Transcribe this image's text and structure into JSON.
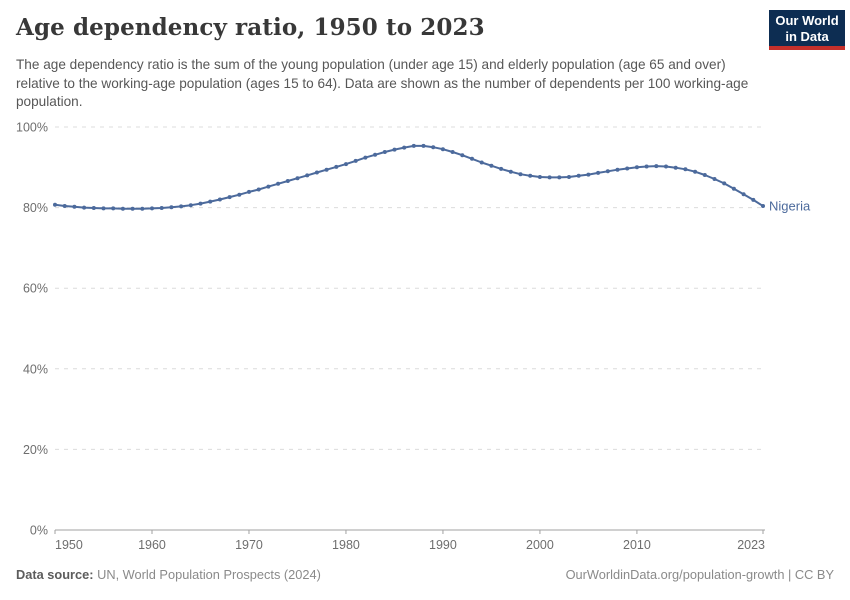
{
  "header": {
    "title": "Age dependency ratio, 1950 to 2023",
    "subtitle": "The age dependency ratio is the sum of the young population (under age 15) and elderly population (age 65 and over) relative to the working-age population (ages 15 to 64). Data are shown as the number of dependents per 100 working-age population."
  },
  "logo": {
    "line1": "Our World",
    "line2": "in Data",
    "bg_color": "#0d2d52",
    "accent_color": "#c5302b"
  },
  "chart_data": {
    "type": "line",
    "title": "Age dependency ratio, 1950 to 2023",
    "xlabel": "",
    "ylabel": "",
    "xlim": [
      1950,
      2023
    ],
    "ylim": [
      0,
      100
    ],
    "x_ticks": [
      1950,
      1960,
      1970,
      1980,
      1990,
      2000,
      2010,
      2023
    ],
    "y_ticks": [
      0,
      20,
      40,
      60,
      80,
      100
    ],
    "y_tick_suffix": "%",
    "grid": "dashed-horizontal",
    "legend": "end-of-line-label",
    "line_color": "#4c6a9c",
    "grid_color": "#dcdcdc",
    "axis_color": "#a1a1a1",
    "tick_label_color": "#6e6e6e",
    "series": [
      {
        "name": "Nigeria",
        "color": "#4c6a9c",
        "x": [
          1950,
          1951,
          1952,
          1953,
          1954,
          1955,
          1956,
          1957,
          1958,
          1959,
          1960,
          1961,
          1962,
          1963,
          1964,
          1965,
          1966,
          1967,
          1968,
          1969,
          1970,
          1971,
          1972,
          1973,
          1974,
          1975,
          1976,
          1977,
          1978,
          1979,
          1980,
          1981,
          1982,
          1983,
          1984,
          1985,
          1986,
          1987,
          1988,
          1989,
          1990,
          1991,
          1992,
          1993,
          1994,
          1995,
          1996,
          1997,
          1998,
          1999,
          2000,
          2001,
          2002,
          2003,
          2004,
          2005,
          2006,
          2007,
          2008,
          2009,
          2010,
          2011,
          2012,
          2013,
          2014,
          2015,
          2016,
          2017,
          2018,
          2019,
          2020,
          2021,
          2022,
          2023
        ],
        "values": [
          80.7,
          80.4,
          80.2,
          80.0,
          79.9,
          79.8,
          79.8,
          79.7,
          79.7,
          79.7,
          79.8,
          79.9,
          80.1,
          80.3,
          80.6,
          81.0,
          81.5,
          82.0,
          82.6,
          83.2,
          83.9,
          84.5,
          85.2,
          85.9,
          86.6,
          87.3,
          88.0,
          88.7,
          89.4,
          90.1,
          90.8,
          91.6,
          92.4,
          93.1,
          93.8,
          94.4,
          94.9,
          95.3,
          95.3,
          95.0,
          94.5,
          93.8,
          93.0,
          92.1,
          91.2,
          90.4,
          89.6,
          88.9,
          88.3,
          87.9,
          87.6,
          87.5,
          87.5,
          87.6,
          87.9,
          88.2,
          88.6,
          89.0,
          89.4,
          89.7,
          90.0,
          90.2,
          90.3,
          90.2,
          89.9,
          89.5,
          88.9,
          88.1,
          87.1,
          86.0,
          84.7,
          83.3,
          81.9,
          80.4
        ]
      }
    ]
  },
  "footer": {
    "source_label": "Data source:",
    "source_value": " UN, World Population Prospects (2024)",
    "credit": "OurWorldinData.org/population-growth | CC BY"
  }
}
